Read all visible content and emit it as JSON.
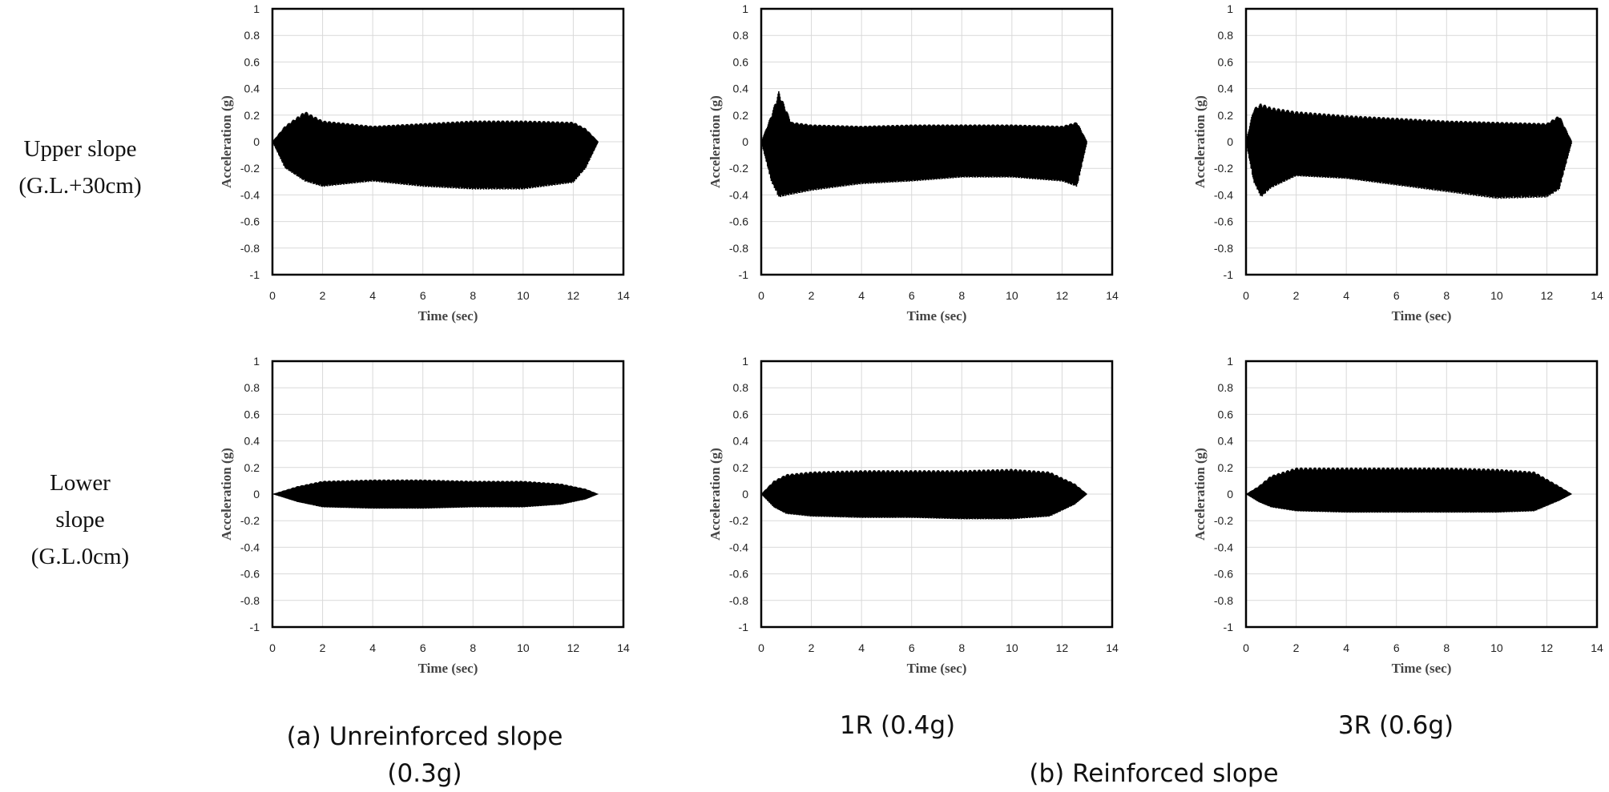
{
  "row_labels": [
    [
      "Upper  slope",
      "(G.L.+30cm)"
    ],
    [
      "Lower",
      "slope",
      "(G.L.0cm)"
    ]
  ],
  "captions": {
    "a": [
      "(a) Unreinforced slope",
      "(0.3g)"
    ],
    "one_r": "1R (0.4g)",
    "three_r": "3R (0.6g)",
    "b": "(b) Reinforced slope"
  },
  "colors": {
    "signal": "#000000",
    "grid": "#d9d9d9",
    "frame": "#000000"
  },
  "chart_data": [
    {
      "type": "area",
      "row": "upper",
      "column": "unreinforced",
      "xlabel": "Time (sec)",
      "ylabel": "Acceleration (g)",
      "xlim": [
        0,
        14
      ],
      "ylim": [
        -1,
        1
      ],
      "xticks": [
        "0",
        "2",
        "4",
        "6",
        "8",
        "10",
        "12",
        "14"
      ],
      "yticks": [
        "1",
        "0.8",
        "0.6",
        "0.4",
        "0.2",
        "0",
        "-0.2",
        "-0.4",
        "-0.6",
        "-0.8",
        "-1"
      ],
      "x": [
        0,
        0.5,
        1.3,
        2,
        4,
        6,
        8,
        10,
        12,
        12.5,
        13
      ],
      "y_max": [
        0,
        0.12,
        0.23,
        0.16,
        0.12,
        0.14,
        0.16,
        0.16,
        0.15,
        0.1,
        0
      ],
      "y_min": [
        0,
        -0.2,
        -0.3,
        -0.34,
        -0.3,
        -0.34,
        -0.36,
        -0.36,
        -0.31,
        -0.2,
        0
      ]
    },
    {
      "type": "area",
      "row": "upper",
      "column": "1R",
      "xlabel": "Time (sec)",
      "ylabel": "Acceleration (g)",
      "xlim": [
        0,
        14
      ],
      "ylim": [
        -1,
        1
      ],
      "xticks": [
        "0",
        "2",
        "4",
        "6",
        "8",
        "10",
        "12",
        "14"
      ],
      "yticks": [
        "1",
        "0.8",
        "0.6",
        "0.4",
        "0.2",
        "0",
        "-0.2",
        "-0.4",
        "-0.6",
        "-0.8",
        "-1"
      ],
      "x": [
        0,
        0.4,
        0.7,
        1.2,
        2,
        4,
        6,
        8,
        10,
        12,
        12.6,
        13
      ],
      "y_max": [
        0,
        0.2,
        0.38,
        0.15,
        0.13,
        0.12,
        0.13,
        0.13,
        0.13,
        0.12,
        0.15,
        0
      ],
      "y_min": [
        0,
        -0.3,
        -0.42,
        -0.4,
        -0.37,
        -0.32,
        -0.3,
        -0.27,
        -0.27,
        -0.3,
        -0.34,
        0
      ]
    },
    {
      "type": "area",
      "row": "upper",
      "column": "3R",
      "xlabel": "Time (sec)",
      "ylabel": "Acceleration (g)",
      "xlim": [
        0,
        14
      ],
      "ylim": [
        -1,
        1
      ],
      "xticks": [
        "0",
        "2",
        "4",
        "6",
        "8",
        "10",
        "12",
        "14"
      ],
      "yticks": [
        "1",
        "0.8",
        "0.6",
        "0.4",
        "0.2",
        "0",
        "-0.2",
        "-0.4",
        "-0.6",
        "-0.8",
        "-1"
      ],
      "x": [
        0,
        0.3,
        0.6,
        1,
        2,
        4,
        6,
        8,
        10,
        12,
        12.5,
        13
      ],
      "y_max": [
        0,
        0.25,
        0.29,
        0.26,
        0.23,
        0.2,
        0.18,
        0.16,
        0.15,
        0.14,
        0.2,
        0
      ],
      "y_min": [
        0,
        -0.3,
        -0.42,
        -0.35,
        -0.26,
        -0.28,
        -0.33,
        -0.38,
        -0.43,
        -0.42,
        -0.36,
        0
      ]
    },
    {
      "type": "area",
      "row": "lower",
      "column": "unreinforced",
      "xlabel": "Time (sec)",
      "ylabel": "Acceleration (g)",
      "xlim": [
        0,
        14
      ],
      "ylim": [
        -1,
        1
      ],
      "xticks": [
        "0",
        "2",
        "4",
        "6",
        "8",
        "10",
        "12",
        "14"
      ],
      "yticks": [
        "1",
        "0.8",
        "0.6",
        "0.4",
        "0.2",
        "0",
        "-0.2",
        "-0.4",
        "-0.6",
        "-0.8",
        "-1"
      ],
      "x": [
        0,
        1,
        2,
        4,
        6,
        8,
        10,
        11.5,
        12.5,
        13
      ],
      "y_max": [
        0,
        0.06,
        0.1,
        0.11,
        0.11,
        0.1,
        0.1,
        0.08,
        0.04,
        0
      ],
      "y_min": [
        0,
        -0.06,
        -0.1,
        -0.11,
        -0.11,
        -0.1,
        -0.1,
        -0.08,
        -0.04,
        0
      ]
    },
    {
      "type": "area",
      "row": "lower",
      "column": "1R",
      "xlabel": "Time (sec)",
      "ylabel": "Acceleration (g)",
      "xlim": [
        0,
        14
      ],
      "ylim": [
        -1,
        1
      ],
      "xticks": [
        "0",
        "2",
        "4",
        "6",
        "8",
        "10",
        "12",
        "14"
      ],
      "yticks": [
        "1",
        "0.8",
        "0.6",
        "0.4",
        "0.2",
        "0",
        "-0.2",
        "-0.4",
        "-0.6",
        "-0.8",
        "-1"
      ],
      "x": [
        0,
        0.5,
        1,
        2,
        4,
        6,
        8,
        10,
        11.5,
        12.5,
        13
      ],
      "y_max": [
        0,
        0.1,
        0.15,
        0.17,
        0.18,
        0.18,
        0.18,
        0.19,
        0.17,
        0.08,
        0
      ],
      "y_min": [
        0,
        -0.1,
        -0.15,
        -0.17,
        -0.18,
        -0.18,
        -0.19,
        -0.19,
        -0.17,
        -0.08,
        0
      ]
    },
    {
      "type": "area",
      "row": "lower",
      "column": "3R",
      "xlabel": "Time (sec)",
      "ylabel": "Acceleration (g)",
      "xlim": [
        0,
        14
      ],
      "ylim": [
        -1,
        1
      ],
      "xticks": [
        "0",
        "2",
        "4",
        "6",
        "8",
        "10",
        "12",
        "14"
      ],
      "yticks": [
        "1",
        "0.8",
        "0.6",
        "0.4",
        "0.2",
        "0",
        "-0.2",
        "-0.4",
        "-0.6",
        "-0.8",
        "-1"
      ],
      "x": [
        0,
        0.5,
        1,
        2,
        4,
        6,
        8,
        10,
        11.5,
        12.5,
        13
      ],
      "y_max": [
        0,
        0.06,
        0.14,
        0.2,
        0.2,
        0.2,
        0.2,
        0.19,
        0.17,
        0.06,
        0
      ],
      "y_min": [
        0,
        -0.06,
        -0.1,
        -0.13,
        -0.14,
        -0.14,
        -0.14,
        -0.14,
        -0.13,
        -0.05,
        0
      ]
    }
  ]
}
